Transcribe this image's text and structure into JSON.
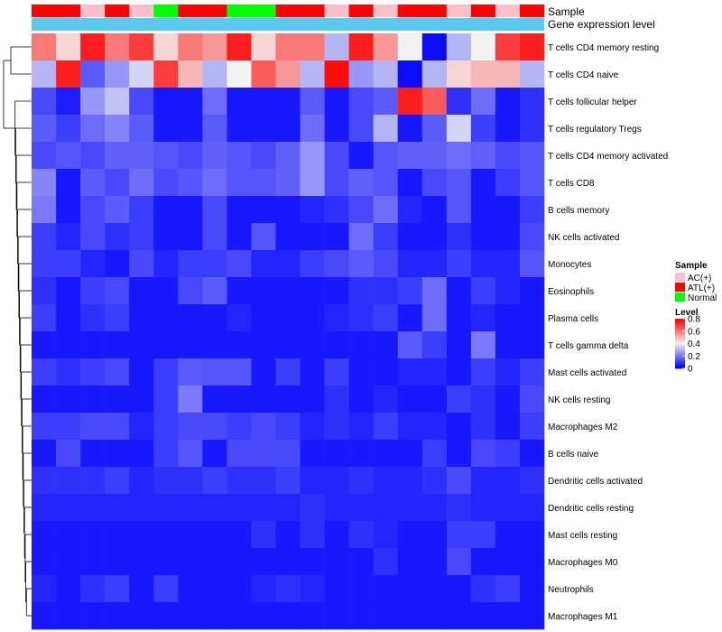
{
  "chart_data": {
    "type": "heatmap",
    "title": "",
    "annotation_labels": {
      "sample": "Sample",
      "gene_expression": "Gene expression level"
    },
    "sample_groups": [
      "ATL(+)",
      "ATL(+)",
      "AC(+)",
      "ATL(+)",
      "AC(+)",
      "Normal",
      "ATL(+)",
      "ATL(+)",
      "Normal",
      "Normal",
      "ATL(+)",
      "ATL(+)",
      "AC(+)",
      "ATL(+)",
      "AC(+)",
      "ATL(+)",
      "ATL(+)",
      "AC(+)",
      "ATL(+)",
      "AC(+)",
      "ATL(+)"
    ],
    "rows": [
      "T cells CD4 memory resting",
      "T cells CD4 naive",
      "T cells follicular helper",
      "T cells regulatory  Tregs",
      "T cells CD4 memory activated",
      "T cells CD8",
      "B cells memory",
      "NK cells activated",
      "Monocytes",
      "Eosinophils",
      "Plasma cells",
      "T cells gamma delta",
      "Mast cells activated",
      "NK cells resting",
      "Macrophages M2",
      "B cells naive",
      "Dendritic cells activated",
      "Dendritic cells resting",
      "Mast cells resting",
      "Macrophages M0",
      "Neutrophils",
      "Macrophages M1"
    ],
    "values": [
      [
        0.6,
        0.45,
        0.75,
        0.6,
        0.7,
        0.45,
        0.6,
        0.55,
        0.75,
        0.45,
        0.6,
        0.6,
        0.3,
        0.75,
        0.55,
        0.4,
        0.02,
        0.3,
        0.4,
        0.7,
        0.75
      ],
      [
        0.3,
        0.75,
        0.15,
        0.25,
        0.35,
        0.7,
        0.5,
        0.3,
        0.4,
        0.65,
        0.55,
        0.3,
        0.78,
        0.25,
        0.3,
        0.02,
        0.3,
        0.45,
        0.5,
        0.5,
        0.3
      ],
      [
        0.12,
        0.05,
        0.25,
        0.32,
        0.12,
        0.04,
        0.04,
        0.18,
        0.04,
        0.04,
        0.04,
        0.15,
        0.04,
        0.12,
        0.15,
        0.75,
        0.65,
        0.08,
        0.18,
        0.04,
        0.08
      ],
      [
        0.15,
        0.1,
        0.18,
        0.22,
        0.15,
        0.04,
        0.04,
        0.15,
        0.04,
        0.04,
        0.04,
        0.18,
        0.04,
        0.12,
        0.3,
        0.04,
        0.15,
        0.35,
        0.1,
        0.04,
        0.08
      ],
      [
        0.12,
        0.14,
        0.12,
        0.16,
        0.16,
        0.14,
        0.12,
        0.16,
        0.14,
        0.12,
        0.16,
        0.25,
        0.12,
        0.04,
        0.14,
        0.16,
        0.16,
        0.18,
        0.16,
        0.12,
        0.14
      ],
      [
        0.22,
        0.04,
        0.15,
        0.12,
        0.18,
        0.12,
        0.14,
        0.18,
        0.14,
        0.14,
        0.16,
        0.25,
        0.12,
        0.16,
        0.14,
        0.04,
        0.12,
        0.14,
        0.04,
        0.1,
        0.14
      ],
      [
        0.2,
        0.04,
        0.12,
        0.15,
        0.1,
        0.04,
        0.04,
        0.12,
        0.04,
        0.04,
        0.04,
        0.06,
        0.08,
        0.12,
        0.18,
        0.06,
        0.04,
        0.14,
        0.04,
        0.04,
        0.1
      ],
      [
        0.1,
        0.06,
        0.12,
        0.08,
        0.1,
        0.04,
        0.04,
        0.12,
        0.04,
        0.14,
        0.04,
        0.04,
        0.04,
        0.18,
        0.1,
        0.04,
        0.04,
        0.08,
        0.04,
        0.04,
        0.12
      ],
      [
        0.1,
        0.1,
        0.06,
        0.04,
        0.12,
        0.06,
        0.1,
        0.1,
        0.12,
        0.06,
        0.06,
        0.1,
        0.12,
        0.15,
        0.12,
        0.06,
        0.06,
        0.1,
        0.06,
        0.06,
        0.14
      ],
      [
        0.08,
        0.04,
        0.1,
        0.12,
        0.04,
        0.04,
        0.12,
        0.15,
        0.04,
        0.04,
        0.04,
        0.04,
        0.04,
        0.08,
        0.08,
        0.1,
        0.18,
        0.04,
        0.1,
        0.06,
        0.04
      ],
      [
        0.1,
        0.04,
        0.08,
        0.1,
        0.04,
        0.04,
        0.04,
        0.04,
        0.06,
        0.04,
        0.04,
        0.04,
        0.06,
        0.08,
        0.1,
        0.04,
        0.18,
        0.04,
        0.06,
        0.04,
        0.04
      ],
      [
        0.04,
        0.04,
        0.04,
        0.04,
        0.04,
        0.04,
        0.04,
        0.04,
        0.04,
        0.04,
        0.04,
        0.04,
        0.04,
        0.04,
        0.04,
        0.15,
        0.1,
        0.04,
        0.2,
        0.04,
        0.04
      ],
      [
        0.1,
        0.08,
        0.1,
        0.12,
        0.04,
        0.1,
        0.15,
        0.14,
        0.14,
        0.04,
        0.1,
        0.04,
        0.1,
        0.04,
        0.04,
        0.06,
        0.06,
        0.04,
        0.1,
        0.06,
        0.1
      ],
      [
        0.04,
        0.04,
        0.04,
        0.04,
        0.04,
        0.1,
        0.2,
        0.04,
        0.04,
        0.04,
        0.04,
        0.04,
        0.08,
        0.04,
        0.06,
        0.04,
        0.04,
        0.1,
        0.08,
        0.04,
        0.12
      ],
      [
        0.1,
        0.1,
        0.12,
        0.12,
        0.06,
        0.1,
        0.12,
        0.12,
        0.1,
        0.12,
        0.1,
        0.06,
        0.08,
        0.06,
        0.1,
        0.06,
        0.06,
        0.04,
        0.08,
        0.04,
        0.1
      ],
      [
        0.04,
        0.12,
        0.04,
        0.04,
        0.04,
        0.1,
        0.14,
        0.04,
        0.12,
        0.12,
        0.12,
        0.04,
        0.04,
        0.04,
        0.04,
        0.04,
        0.1,
        0.04,
        0.12,
        0.1,
        0.04
      ],
      [
        0.08,
        0.08,
        0.08,
        0.1,
        0.06,
        0.08,
        0.08,
        0.1,
        0.08,
        0.08,
        0.1,
        0.06,
        0.06,
        0.08,
        0.06,
        0.06,
        0.08,
        0.12,
        0.06,
        0.06,
        0.08
      ],
      [
        0.06,
        0.06,
        0.06,
        0.06,
        0.06,
        0.06,
        0.06,
        0.06,
        0.06,
        0.06,
        0.06,
        0.08,
        0.06,
        0.06,
        0.06,
        0.06,
        0.06,
        0.08,
        0.06,
        0.06,
        0.06
      ],
      [
        0.04,
        0.04,
        0.04,
        0.04,
        0.04,
        0.04,
        0.04,
        0.04,
        0.04,
        0.08,
        0.04,
        0.08,
        0.04,
        0.08,
        0.06,
        0.04,
        0.04,
        0.1,
        0.1,
        0.04,
        0.04
      ],
      [
        0.04,
        0.04,
        0.04,
        0.04,
        0.04,
        0.04,
        0.04,
        0.04,
        0.04,
        0.04,
        0.04,
        0.04,
        0.04,
        0.04,
        0.08,
        0.04,
        0.04,
        0.12,
        0.04,
        0.04,
        0.04
      ],
      [
        0.06,
        0.04,
        0.08,
        0.1,
        0.04,
        0.1,
        0.04,
        0.04,
        0.04,
        0.06,
        0.08,
        0.06,
        0.04,
        0.04,
        0.04,
        0.04,
        0.04,
        0.04,
        0.08,
        0.1,
        0.04
      ],
      [
        0.04,
        0.04,
        0.04,
        0.04,
        0.04,
        0.04,
        0.04,
        0.04,
        0.04,
        0.04,
        0.04,
        0.04,
        0.04,
        0.04,
        0.04,
        0.04,
        0.04,
        0.04,
        0.04,
        0.04,
        0.04
      ]
    ],
    "legend_sample": {
      "title": "Sample",
      "entries": [
        {
          "label": "AC(+)",
          "color": "#FFC0CB"
        },
        {
          "label": "ATL(+)",
          "color": "#FF0000"
        },
        {
          "label": "Normal",
          "color": "#00FF00"
        }
      ]
    },
    "legend_level": {
      "title": "Level",
      "ticks": [
        "0.8",
        "0.6",
        "0.4",
        "0.2",
        "0"
      ],
      "tick_values": [
        0.8,
        0.6,
        0.4,
        0.2,
        0
      ],
      "range": [
        0,
        0.8
      ]
    },
    "colors": {
      "low": "#0000FF",
      "mid": "#F2F2F2",
      "high": "#FF0000",
      "gene_expression_bar": "#5BC8EE",
      "dendrogram": "#000000"
    }
  }
}
